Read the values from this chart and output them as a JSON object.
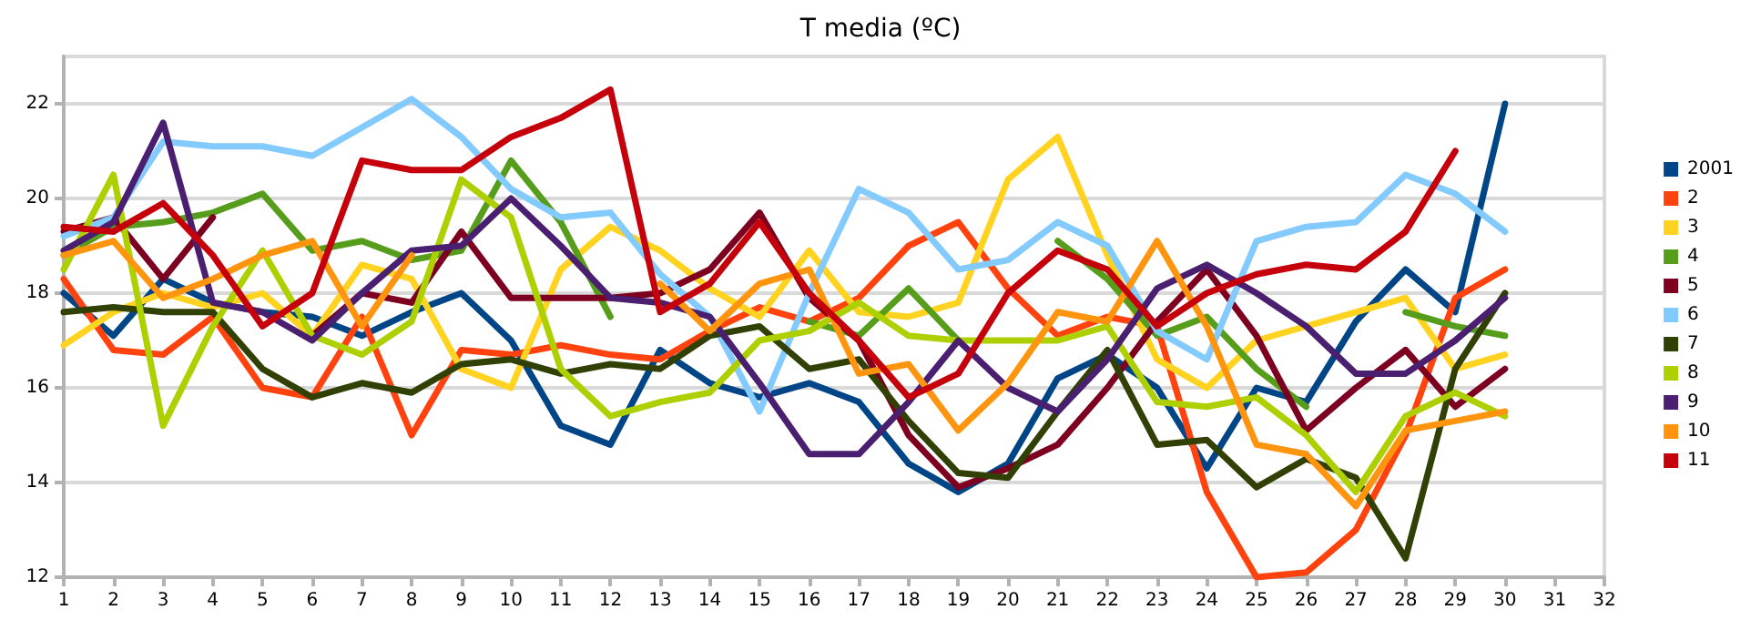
{
  "chart_data": {
    "type": "line",
    "title": "T media (ºC)",
    "x": [
      1,
      2,
      3,
      4,
      5,
      6,
      7,
      8,
      9,
      10,
      11,
      12,
      13,
      14,
      15,
      16,
      17,
      18,
      19,
      20,
      21,
      22,
      23,
      24,
      25,
      26,
      27,
      28,
      29,
      30
    ],
    "xlim": [
      1,
      32
    ],
    "xticks": [
      1,
      2,
      3,
      4,
      5,
      6,
      7,
      8,
      9,
      10,
      11,
      12,
      13,
      14,
      15,
      16,
      17,
      18,
      19,
      20,
      21,
      22,
      23,
      24,
      25,
      26,
      27,
      28,
      29,
      30,
      31,
      32
    ],
    "ylim": [
      12,
      23
    ],
    "yticks": [
      12,
      14,
      16,
      18,
      20,
      22
    ],
    "grid": "y",
    "legend": "right",
    "marker": "none",
    "line_style": "solid",
    "series": [
      {
        "name": "2001",
        "color": "#004586",
        "values": [
          18.0,
          17.1,
          18.3,
          17.8,
          17.6,
          17.5,
          17.1,
          17.6,
          18.0,
          17.0,
          15.2,
          14.8,
          16.8,
          16.1,
          15.8,
          16.1,
          15.7,
          14.4,
          13.8,
          14.4,
          16.2,
          16.7,
          16.0,
          14.3,
          16.0,
          15.7,
          17.4,
          18.5,
          17.6,
          22.0
        ]
      },
      {
        "name": "2",
        "color": "#ff420e",
        "values": [
          18.3,
          16.8,
          16.7,
          17.5,
          16.0,
          15.8,
          17.5,
          15.0,
          16.8,
          16.7,
          16.9,
          16.7,
          16.6,
          17.2,
          17.7,
          17.4,
          17.9,
          19.0,
          19.5,
          18.1,
          17.1,
          17.5,
          17.3,
          13.8,
          12.0,
          12.1,
          13.0,
          15.0,
          17.9,
          18.5
        ]
      },
      {
        "name": "3",
        "color": "#ffd320",
        "values": [
          16.9,
          17.6,
          18.0,
          17.7,
          18.0,
          17.1,
          18.6,
          18.3,
          16.4,
          16.0,
          18.5,
          19.4,
          18.9,
          18.1,
          17.5,
          18.9,
          17.6,
          17.5,
          17.8,
          20.4,
          21.3,
          18.8,
          16.6,
          16.0,
          17.0,
          17.3,
          17.6,
          17.9,
          16.4,
          16.7
        ]
      },
      {
        "name": "4",
        "color": "#579d1c",
        "values": [
          18.8,
          19.4,
          19.5,
          19.7,
          20.1,
          18.9,
          19.1,
          18.7,
          18.9,
          20.8,
          19.5,
          17.5,
          null,
          null,
          null,
          17.4,
          17.1,
          18.1,
          17.0,
          null,
          19.1,
          18.3,
          17.1,
          17.5,
          16.4,
          15.6,
          null,
          17.6,
          17.3,
          17.1
        ]
      },
      {
        "name": "5",
        "color": "#7e0021",
        "values": [
          19.3,
          19.6,
          18.3,
          19.6,
          null,
          17.1,
          18.0,
          17.8,
          19.3,
          17.9,
          17.9,
          17.9,
          18.0,
          18.5,
          19.7,
          17.9,
          17.0,
          15.0,
          13.9,
          14.3,
          14.8,
          16.0,
          17.4,
          18.5,
          17.1,
          15.1,
          16.0,
          16.8,
          15.6,
          16.4
        ]
      },
      {
        "name": "6",
        "color": "#83caff",
        "values": [
          19.2,
          19.6,
          21.2,
          21.1,
          21.1,
          20.9,
          21.5,
          22.1,
          21.3,
          20.2,
          19.6,
          19.7,
          18.4,
          17.5,
          15.5,
          18.0,
          20.2,
          19.7,
          18.5,
          18.7,
          19.5,
          19.0,
          17.2,
          16.6,
          19.1,
          19.4,
          19.5,
          20.5,
          20.1,
          19.3
        ]
      },
      {
        "name": "7",
        "color": "#314004",
        "values": [
          17.6,
          17.7,
          17.6,
          17.6,
          16.4,
          15.8,
          16.1,
          15.9,
          16.5,
          16.6,
          16.3,
          16.5,
          16.4,
          17.1,
          17.3,
          16.4,
          16.6,
          15.3,
          14.2,
          14.1,
          15.5,
          16.8,
          14.8,
          14.9,
          13.9,
          14.5,
          14.1,
          12.4,
          16.4,
          18.0
        ]
      },
      {
        "name": "8",
        "color": "#aecf00",
        "values": [
          18.5,
          20.5,
          15.2,
          17.3,
          18.9,
          17.1,
          16.7,
          17.4,
          20.4,
          19.6,
          16.4,
          15.4,
          15.7,
          15.9,
          17.0,
          17.2,
          17.8,
          17.1,
          17.0,
          17.0,
          17.0,
          17.3,
          15.7,
          15.6,
          15.8,
          15.0,
          13.8,
          15.4,
          15.9,
          15.4
        ]
      },
      {
        "name": "9",
        "color": "#4b1f6f",
        "values": [
          18.9,
          19.5,
          21.6,
          17.8,
          17.6,
          17.0,
          18.0,
          18.9,
          19.0,
          20.0,
          19.0,
          17.9,
          17.8,
          17.5,
          16.1,
          14.6,
          14.6,
          15.7,
          17.0,
          16.0,
          15.5,
          16.6,
          18.1,
          18.6,
          18.0,
          17.3,
          16.3,
          16.3,
          17.0,
          17.9
        ]
      },
      {
        "name": "10",
        "color": "#ff950e",
        "values": [
          18.8,
          19.1,
          17.9,
          18.3,
          18.8,
          19.1,
          17.3,
          18.8,
          null,
          null,
          null,
          null,
          18.2,
          17.2,
          18.2,
          18.5,
          16.3,
          16.5,
          15.1,
          16.1,
          17.6,
          17.4,
          19.1,
          17.3,
          14.8,
          14.6,
          13.5,
          15.1,
          15.3,
          15.5
        ]
      },
      {
        "name": "11",
        "color": "#c5000b",
        "values": [
          19.4,
          19.3,
          19.9,
          18.8,
          17.3,
          18.0,
          20.8,
          20.6,
          20.6,
          21.3,
          21.7,
          22.3,
          17.6,
          18.2,
          19.5,
          18.0,
          17.0,
          15.8,
          16.3,
          18.0,
          18.9,
          18.5,
          17.3,
          18.0,
          18.4,
          18.6,
          18.5,
          19.3,
          21.0,
          null
        ]
      }
    ]
  }
}
